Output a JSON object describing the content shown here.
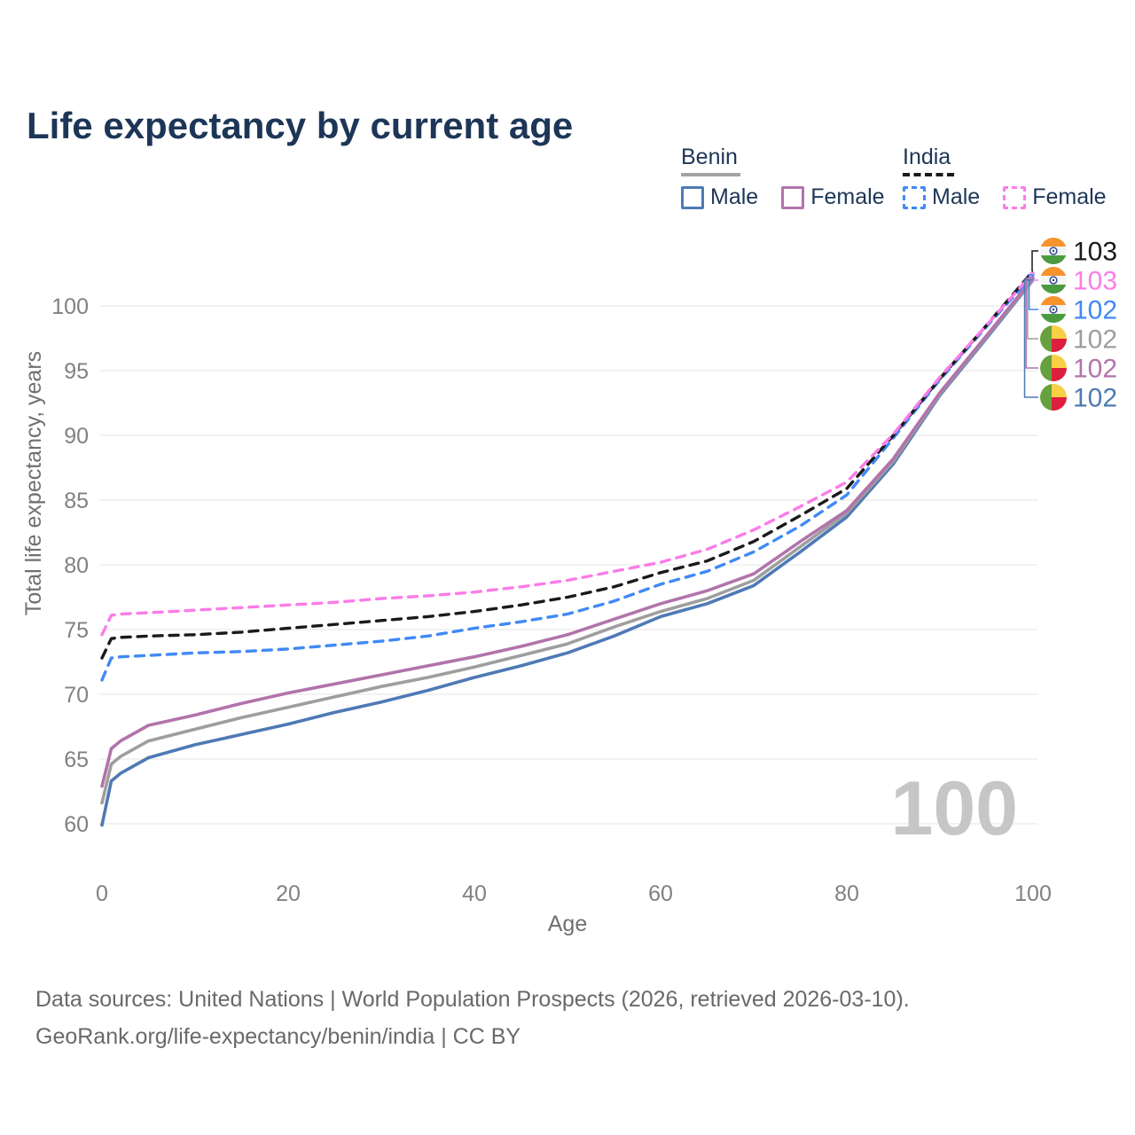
{
  "title": "Life expectancy by current age",
  "legend": {
    "groups": [
      {
        "name": "Benin",
        "underline_style": "solid",
        "underline_color": "#a3a3a3",
        "items": [
          {
            "label": "Male",
            "color": "#4e7ab5",
            "dashed": false
          },
          {
            "label": "Female",
            "color": "#b273ab",
            "dashed": false
          }
        ]
      },
      {
        "name": "India",
        "underline_style": "dashed",
        "underline_color": "#1a1a1a",
        "items": [
          {
            "label": "Male",
            "color": "#4089f7",
            "dashed": true
          },
          {
            "label": "Female",
            "color": "#fb7ce8",
            "dashed": true
          }
        ]
      }
    ]
  },
  "footer": {
    "line1": "Data sources: United Nations | World Population Prospects (2026, retrieved 2026-03-10).",
    "line2": "GeoRank.org/life-expectancy/benin/india | CC BY"
  },
  "chart_data": {
    "type": "line",
    "title": "Life expectancy by current age",
    "xlabel": "Age",
    "ylabel": "Total life expectancy, years",
    "xlim": [
      0,
      100
    ],
    "ylim": [
      59,
      103.5
    ],
    "xticks": [
      0,
      20,
      40,
      60,
      80,
      100
    ],
    "yticks": [
      60,
      65,
      70,
      75,
      80,
      85,
      90,
      95,
      100
    ],
    "grid": "horizontal-only",
    "legend_position": "top-right",
    "watermark": "100",
    "x": [
      0,
      1,
      2,
      5,
      10,
      15,
      20,
      25,
      30,
      35,
      40,
      45,
      50,
      55,
      60,
      65,
      70,
      75,
      80,
      85,
      90,
      95,
      100
    ],
    "series": [
      {
        "name": "Benin Male",
        "country": "Benin",
        "sex": "Male",
        "color": "#4e7ab5",
        "dashed": false,
        "values": [
          59.9,
          63.3,
          63.9,
          65.1,
          66.1,
          66.9,
          67.7,
          68.6,
          69.4,
          70.3,
          71.3,
          72.2,
          73.2,
          74.5,
          76.0,
          77.0,
          78.4,
          81.0,
          83.7,
          87.8,
          93.1,
          97.5,
          102.0
        ]
      },
      {
        "name": "Benin Both sexes",
        "country": "Benin",
        "sex": "Both",
        "color": "#9e9e9e",
        "dashed": false,
        "values": [
          61.6,
          64.6,
          65.2,
          66.4,
          67.3,
          68.2,
          69.0,
          69.8,
          70.6,
          71.3,
          72.1,
          73.0,
          73.9,
          75.2,
          76.4,
          77.4,
          78.8,
          81.4,
          84.0,
          88.0,
          93.2,
          97.6,
          102.05
        ]
      },
      {
        "name": "Benin Female",
        "country": "Benin",
        "sex": "Female",
        "color": "#b273ab",
        "dashed": false,
        "values": [
          62.9,
          65.8,
          66.4,
          67.6,
          68.4,
          69.3,
          70.1,
          70.8,
          71.5,
          72.2,
          72.9,
          73.7,
          74.6,
          75.8,
          77.0,
          78.0,
          79.3,
          81.8,
          84.2,
          88.2,
          93.3,
          97.7,
          102.15
        ]
      },
      {
        "name": "India Male",
        "country": "India",
        "sex": "Male",
        "color": "#4089f7",
        "dashed": true,
        "values": [
          71.1,
          72.8,
          72.9,
          73.0,
          73.2,
          73.3,
          73.5,
          73.8,
          74.1,
          74.5,
          75.1,
          75.6,
          76.2,
          77.2,
          78.5,
          79.5,
          81.0,
          83.0,
          85.4,
          89.8,
          94.3,
          98.4,
          102.4
        ]
      },
      {
        "name": "India Both sexes",
        "country": "India",
        "sex": "Both",
        "color": "#1a1a1a",
        "dashed": true,
        "values": [
          72.8,
          74.3,
          74.4,
          74.5,
          74.6,
          74.8,
          75.1,
          75.4,
          75.7,
          76.0,
          76.4,
          76.9,
          77.5,
          78.3,
          79.4,
          80.3,
          81.8,
          83.8,
          85.9,
          90.0,
          94.4,
          98.5,
          102.7
        ]
      },
      {
        "name": "India Female",
        "country": "India",
        "sex": "Female",
        "color": "#fb7ce8",
        "dashed": true,
        "values": [
          74.6,
          76.1,
          76.2,
          76.3,
          76.5,
          76.7,
          76.9,
          77.1,
          77.4,
          77.6,
          77.9,
          78.3,
          78.8,
          79.5,
          80.2,
          81.2,
          82.7,
          84.5,
          86.4,
          90.1,
          94.5,
          98.5,
          102.55
        ]
      }
    ],
    "end_labels": [
      {
        "value": "103",
        "flag": "india",
        "series": 4
      },
      {
        "value": "103",
        "flag": "india",
        "series": 5
      },
      {
        "value": "102",
        "flag": "india",
        "series": 3
      },
      {
        "value": "102",
        "flag": "benin",
        "series": 1
      },
      {
        "value": "102",
        "flag": "benin",
        "series": 2
      },
      {
        "value": "102",
        "flag": "benin",
        "series": 0
      }
    ]
  }
}
